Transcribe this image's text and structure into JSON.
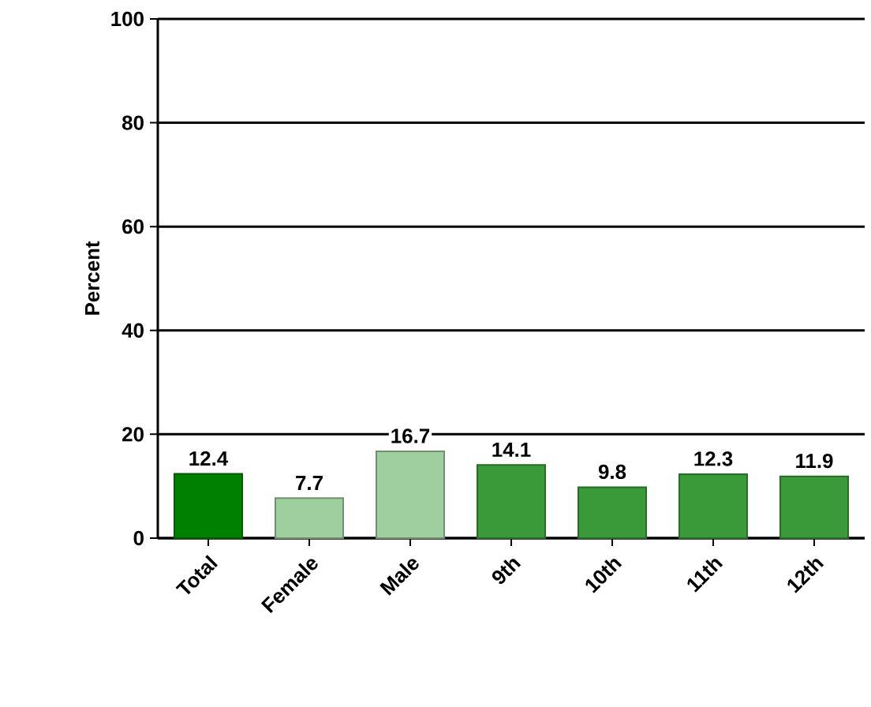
{
  "chart_data": {
    "type": "bar",
    "ylabel": "Percent",
    "categories": [
      "Total",
      "Female",
      "Male",
      "9th",
      "10th",
      "11th",
      "12th"
    ],
    "values": [
      12.4,
      7.7,
      16.7,
      14.1,
      9.8,
      12.3,
      11.9
    ],
    "colors": [
      "#008000",
      "#9fcf9f",
      "#9fcf9f",
      "#3a9a3a",
      "#3a9a3a",
      "#3a9a3a",
      "#3a9a3a"
    ],
    "ylim": [
      0,
      100
    ],
    "yticks": [
      0,
      20,
      40,
      60,
      80,
      100
    ],
    "grid": "y",
    "data_labels": true
  }
}
